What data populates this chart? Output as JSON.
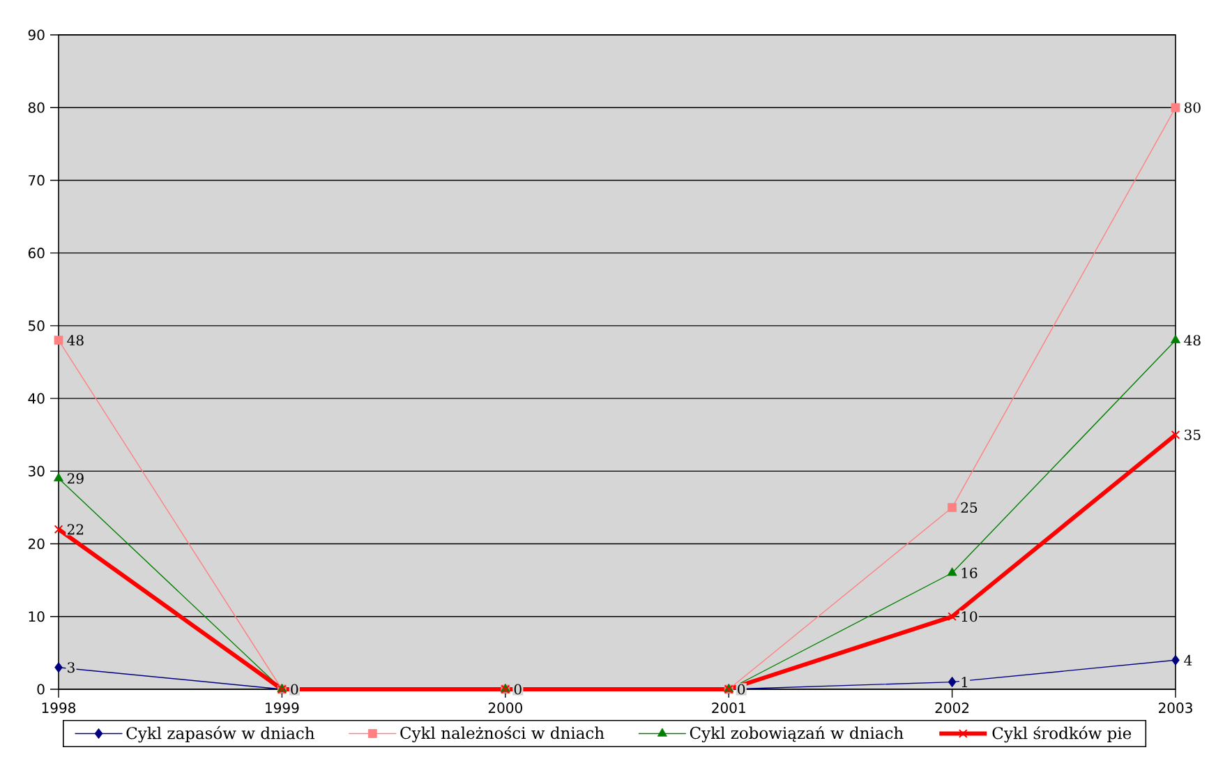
{
  "chart_data": {
    "type": "line",
    "x": [
      1998,
      1999,
      2000,
      2001,
      2002,
      2003
    ],
    "xlim": [
      1998,
      2003
    ],
    "xticks": [
      1998,
      1999,
      2000,
      2001,
      2002,
      2003
    ],
    "ylim": [
      0,
      90
    ],
    "yticks": [
      0,
      10,
      20,
      30,
      40,
      50,
      60,
      70,
      80,
      90
    ],
    "grid": "y",
    "legend": "bottom",
    "line_style": "solid",
    "series": [
      {
        "name": "Cykl zapasów w dniach",
        "color": "#000080",
        "marker": "diamond",
        "values": [
          3,
          0,
          0,
          0,
          1,
          4
        ],
        "value_labels": [
          "3",
          null,
          null,
          null,
          "1",
          "4"
        ]
      },
      {
        "name": "Cykl należności w dniach",
        "color": "#ff8080",
        "marker": "square",
        "values": [
          48,
          0,
          0,
          0,
          25,
          80
        ],
        "value_labels": [
          "48",
          null,
          null,
          null,
          "25",
          "80"
        ]
      },
      {
        "name": "Cykl zobowiązań w dniach",
        "color": "#008000",
        "marker": "triangle",
        "values": [
          29,
          0,
          0,
          0,
          16,
          48
        ],
        "value_labels": [
          "29",
          null,
          null,
          null,
          "16",
          "48"
        ]
      },
      {
        "name": "Cykl środków pie",
        "color": "#ff0000",
        "marker": "cross",
        "values": [
          22,
          0,
          0,
          0,
          10,
          35
        ],
        "value_labels": [
          "22",
          "0",
          "0",
          "0",
          "10",
          "35"
        ]
      }
    ]
  }
}
